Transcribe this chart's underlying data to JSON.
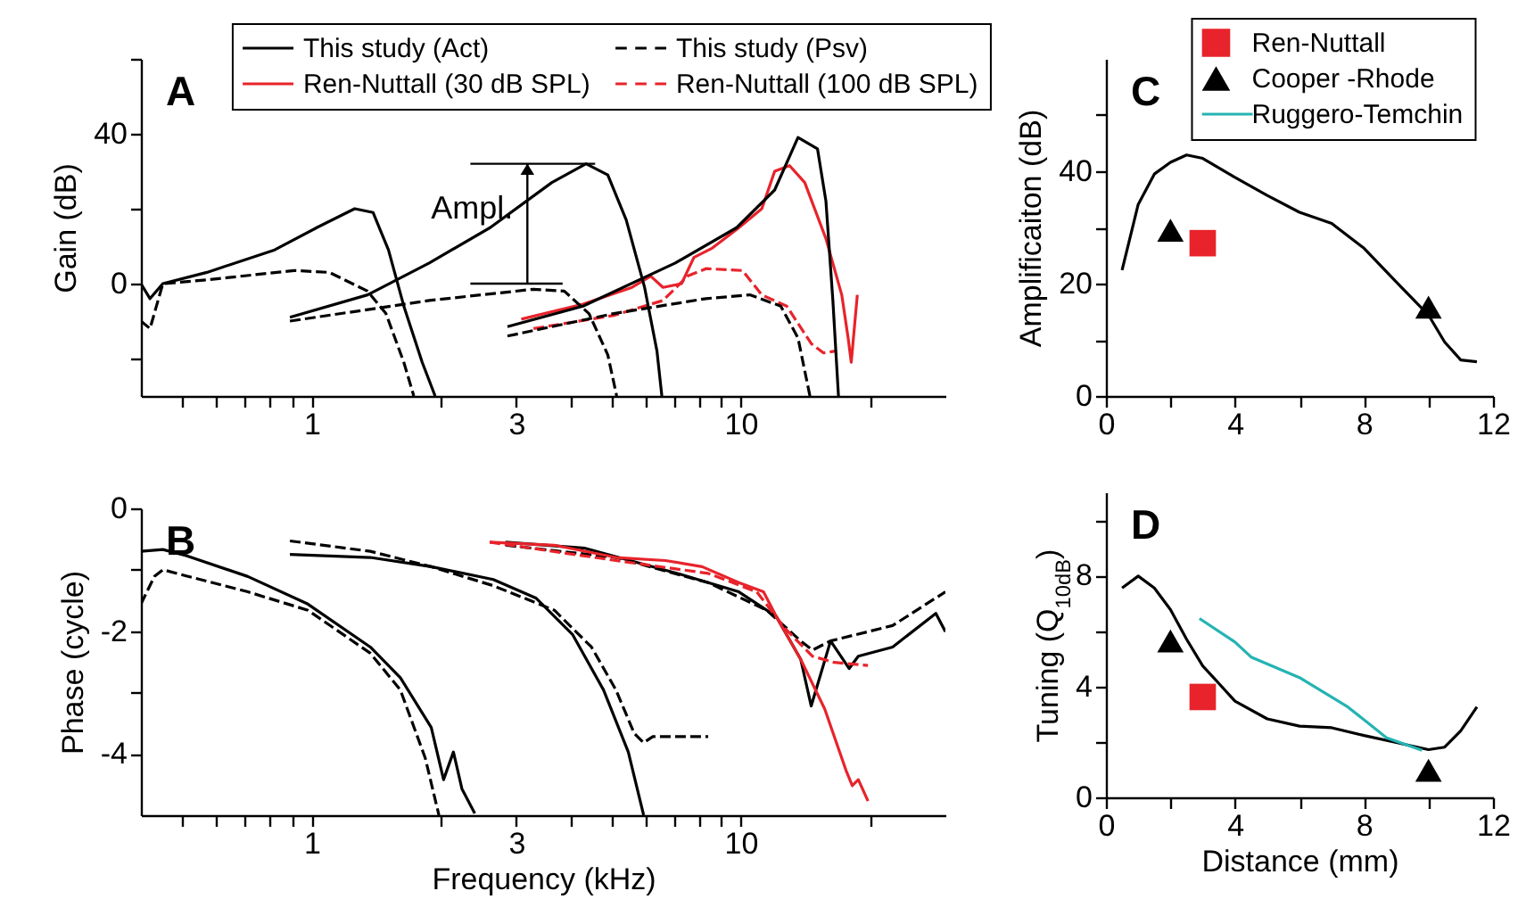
{
  "chart_data": [
    {
      "type": "line",
      "title": "A",
      "ylabel": "Gain (dB)",
      "log": "x",
      "xlim": [
        0.4,
        30
      ],
      "xticks": [
        {
          "value": 0.5,
          "label": null
        },
        {
          "value": 0.6,
          "label": null
        },
        {
          "value": 0.7,
          "label": null
        },
        {
          "value": 0.8,
          "label": null
        },
        {
          "value": 0.9,
          "label": null
        },
        1,
        {
          "value": 2,
          "label": null
        },
        3,
        {
          "value": 4,
          "label": null
        },
        {
          "value": 5,
          "label": null
        },
        {
          "value": 6,
          "label": null
        },
        {
          "value": 7,
          "label": null
        },
        {
          "value": 8,
          "label": null
        },
        {
          "value": 9,
          "label": null
        },
        10,
        {
          "value": 20,
          "label": null
        }
      ],
      "ylim": [
        -30,
        60
      ],
      "yticks": [
        {
          "value": -20,
          "label": null
        },
        0,
        {
          "value": 20,
          "label": null
        },
        40,
        {
          "value": 60,
          "label": null
        }
      ],
      "legend": "top",
      "annotations": [
        {
          "text": "Ampl.",
          "x": 4.36,
          "y": 32
        }
      ],
      "series": [
        {
          "name": "This study (Act)",
          "color": "#000000",
          "line_style": "solid",
          "x": [
            0.4,
            0.42,
            0.45,
            0.57,
            0.82,
            1.03,
            1.26,
            1.39,
            1.51,
            1.64,
            1.81,
            1.94
          ],
          "values": [
            0,
            -4,
            0,
            3,
            9,
            15,
            20,
            19,
            9,
            -6,
            -21,
            -30
          ]
        },
        {
          "name": "Ren-Nuttall (30 dB SPL)",
          "color": "#e8232b",
          "line_style": "solid",
          "x": [
            3.08,
            4.29,
            5.58,
            6.17,
            6.59,
            7.28,
            7.78,
            8.59,
            9.8,
            11.2,
            12,
            13,
            14.1,
            15.8,
            17.2,
            17.8,
            18.1,
            18.7
          ],
          "values": [
            -9.5,
            -5.5,
            -1,
            2,
            -1,
            0,
            7,
            9.5,
            14.5,
            20,
            30,
            31.5,
            27,
            12,
            -3,
            -14.5,
            -21,
            -3
          ]
        },
        {
          "name": "This study (Psv)",
          "color": "#000000",
          "line_style": "dashed",
          "x": [
            0.4,
            0.42,
            0.45,
            0.57,
            0.91,
            1.1,
            1.35,
            1.49,
            1.64,
            1.73
          ],
          "values": [
            -10,
            -12,
            0,
            1,
            3.5,
            3,
            -2,
            -8,
            -21,
            -30
          ]
        },
        {
          "name": "Ren-Nuttall (100 dB SPL)",
          "color": "#e8232b",
          "line_style": "dashed",
          "x": [
            3.29,
            5.06,
            6.59,
            7.52,
            8.3,
            10.1,
            11.2,
            12.8,
            14.6,
            15.6,
            16.6
          ],
          "values": [
            -12,
            -8.5,
            -4.5,
            2,
            4,
            3.5,
            -3,
            -6,
            -16,
            -18.5,
            -18
          ]
        },
        {
          "color": "#000000",
          "line_style": "solid",
          "x": [
            0.89,
            1.35,
            1.88,
            2.61,
            3.63,
            4.36,
            4.9,
            5.41,
            5.97,
            6.38,
            6.55
          ],
          "values": [
            -9,
            -3,
            5.5,
            15,
            27,
            32,
            29,
            17,
            -1,
            -18,
            -30
          ]
        },
        {
          "color": "#000000",
          "line_style": "solid",
          "x": [
            2.86,
            4.29,
            7.04,
            9.8,
            12,
            13.6,
            15.1,
            15.8,
            16.4,
            16.9
          ],
          "values": [
            -11.5,
            -6,
            5.5,
            15,
            25,
            39,
            36,
            22,
            -4.5,
            -30
          ]
        },
        {
          "color": "#000000",
          "line_style": "dashed",
          "x": [
            0.89,
            1.88,
            3.29,
            3.88,
            4.43,
            4.9,
            5.14
          ],
          "values": [
            -10,
            -4.5,
            -1.5,
            -2,
            -8,
            -19,
            -30
          ]
        },
        {
          "color": "#000000",
          "line_style": "dashed",
          "x": [
            2.86,
            5.06,
            8.3,
            10.5,
            12.4,
            13.6,
            14.5
          ],
          "values": [
            -14,
            -8,
            -4,
            -3,
            -6,
            -14.5,
            -30
          ]
        }
      ]
    },
    {
      "type": "line",
      "title": "B",
      "xlabel": "Frequency (kHz)",
      "ylabel": "Phase (cycle)",
      "log": "x",
      "xlim": [
        0.4,
        30
      ],
      "xticks": [
        {
          "value": 0.5,
          "label": null
        },
        {
          "value": 0.6,
          "label": null
        },
        {
          "value": 0.7,
          "label": null
        },
        {
          "value": 0.8,
          "label": null
        },
        {
          "value": 0.9,
          "label": null
        },
        1,
        {
          "value": 2,
          "label": null
        },
        3,
        {
          "value": 4,
          "label": null
        },
        {
          "value": 5,
          "label": null
        },
        {
          "value": 6,
          "label": null
        },
        {
          "value": 7,
          "label": null
        },
        {
          "value": 8,
          "label": null
        },
        {
          "value": 9,
          "label": null
        },
        10,
        {
          "value": 20,
          "label": null
        }
      ],
      "ylim": [
        -5,
        0
      ],
      "yticks": [
        0,
        {
          "value": -1,
          "label": null
        },
        -2,
        {
          "value": -3,
          "label": null
        },
        -4
      ],
      "series": [
        {
          "color": "#000000",
          "line_style": "solid",
          "x": [
            0.4,
            0.45,
            0.51,
            0.71,
            0.98,
            1.37,
            1.61,
            1.9,
            2.03,
            2.14,
            2.24,
            2.4
          ],
          "values": [
            -0.7,
            -0.67,
            -0.77,
            -1.11,
            -1.56,
            -2.26,
            -2.76,
            -3.57,
            -4.42,
            -3.97,
            -4.57,
            -4.97
          ]
        },
        {
          "color": "#000000",
          "line_style": "dashed",
          "x": [
            0.4,
            0.43,
            0.45,
            0.51,
            0.71,
            0.98,
            1.37,
            1.61,
            1.84,
            1.98
          ],
          "values": [
            -1.56,
            -1.11,
            -1.0,
            -1.1,
            -1.36,
            -1.66,
            -2.36,
            -2.96,
            -4.07,
            -5
          ]
        },
        {
          "color": "#000000",
          "line_style": "solid",
          "x": [
            0.89,
            1.37,
            1.9,
            2.65,
            3.33,
            4.06,
            4.79,
            5.47,
            5.94
          ],
          "values": [
            -0.75,
            -0.8,
            -0.95,
            -1.16,
            -1.46,
            -2.06,
            -2.96,
            -3.97,
            -5
          ]
        },
        {
          "color": "#000000",
          "line_style": "dashed",
          "x": [
            0.89,
            1.37,
            1.9,
            2.65,
            3.68,
            4.49,
            5.12,
            5.65,
            5.94,
            6.24,
            8.4
          ],
          "values": [
            -0.53,
            -0.7,
            -0.95,
            -1.26,
            -1.66,
            -2.26,
            -2.96,
            -3.67,
            -3.82,
            -3.72,
            -3.72
          ]
        },
        {
          "color": "#000000",
          "line_style": "solid",
          "x": [
            2.83,
            4.34,
            7.12,
            9.9,
            12.1,
            13.8,
            14.6,
            16.2,
            17.9,
            18.8,
            22.6,
            28.5,
            30
          ],
          "values": [
            -0.55,
            -0.65,
            -1.06,
            -1.36,
            -1.76,
            -2.46,
            -3.22,
            -2.16,
            -2.61,
            -2.41,
            -2.26,
            -1.71,
            -2.01
          ]
        },
        {
          "color": "#000000",
          "line_style": "dashed",
          "x": [
            2.83,
            5.12,
            8.4,
            11.5,
            13.8,
            14.7,
            16.2,
            22.6,
            30
          ],
          "values": [
            -0.6,
            -0.8,
            -1.21,
            -1.66,
            -2.16,
            -2.31,
            -2.16,
            -1.91,
            -1.36
          ]
        },
        {
          "color": "#e8232b",
          "line_style": "solid",
          "x": [
            2.6,
            3.68,
            5.12,
            6.67,
            8.13,
            9.9,
            11.3,
            12.1,
            13.8,
            15.7,
            17.6,
            18.2,
            18.8,
            19.8
          ],
          "values": [
            -0.55,
            -0.6,
            -0.8,
            -0.85,
            -0.95,
            -1.21,
            -1.36,
            -1.76,
            -2.46,
            -3.27,
            -4.27,
            -4.52,
            -4.42,
            -4.77
          ]
        },
        {
          "color": "#e8232b",
          "line_style": "dashed",
          "x": [
            2.6,
            5.12,
            8.4,
            10.9,
            12.7,
            14.7,
            16.5,
            19.8
          ],
          "values": [
            -0.55,
            -0.85,
            -1.06,
            -1.36,
            -1.96,
            -2.41,
            -2.51,
            -2.56
          ]
        }
      ]
    },
    {
      "type": "line",
      "title": "C",
      "ylabel": "Amplificaiton (dB)",
      "xlim": [
        0,
        12
      ],
      "xticks": [
        0,
        {
          "value": 2,
          "label": null
        },
        4,
        {
          "value": 6,
          "label": null
        },
        8,
        {
          "value": 10,
          "label": null
        },
        12
      ],
      "ylim": [
        0,
        60
      ],
      "yticks": [
        0,
        {
          "value": 10,
          "label": null
        },
        20,
        {
          "value": 30,
          "label": null
        },
        40,
        {
          "value": 50,
          "label": null
        }
      ],
      "legend": "top right",
      "series": [
        {
          "color": "#000000",
          "x": [
            0.5,
            1,
            1.5,
            2,
            2.5,
            3,
            4,
            5,
            6,
            7,
            8,
            9,
            10,
            10.5,
            11,
            11.5
          ],
          "values": [
            22.4,
            34.1,
            39.5,
            41.6,
            42.9,
            42.3,
            38.9,
            35.7,
            32.7,
            30.7,
            26.3,
            20.3,
            14.4,
            9.6,
            6.4,
            6.1
          ]
        },
        {
          "name": "Ren-Nuttall",
          "type": "scatter",
          "marker": "square",
          "color": "#e8232b",
          "x": [
            3
          ],
          "values": [
            27.2
          ]
        },
        {
          "name": "Cooper -Rhode",
          "type": "scatter",
          "marker": "triangle",
          "color": "#000000",
          "x": [
            2,
            10
          ],
          "values": [
            29.5,
            15.8
          ]
        },
        {
          "name": "Ruggero-Temchin",
          "color": "#25b3b3"
        }
      ]
    },
    {
      "type": "line",
      "title": "D",
      "xlabel": "Distance (mm)",
      "ylabel": "Tuning (Q$_{10dB}$)",
      "xlim": [
        0,
        12
      ],
      "xticks": [
        0,
        {
          "value": 2,
          "label": null
        },
        4,
        {
          "value": 6,
          "label": null
        },
        8,
        {
          "value": 10,
          "label": null
        },
        12
      ],
      "ylim": [
        0,
        11
      ],
      "yticks": [
        0,
        {
          "value": 2,
          "label": null
        },
        4,
        {
          "value": 6,
          "label": null
        },
        8,
        {
          "value": 10,
          "label": null
        }
      ],
      "series": [
        {
          "color": "#000000",
          "x": [
            0.5,
            1,
            1.5,
            2,
            2.5,
            3,
            3.5,
            4,
            5,
            6,
            7,
            8,
            9,
            10,
            10.5,
            11,
            11.5
          ],
          "values": [
            7.55,
            7.98,
            7.55,
            6.77,
            5.7,
            4.74,
            4.11,
            3.47,
            2.83,
            2.57,
            2.51,
            2.23,
            1.98,
            1.72,
            1.81,
            2.4,
            3.26
          ]
        },
        {
          "color": "#25b3b3",
          "x": [
            2.9,
            4,
            4.5,
            6,
            7.5,
            8.7,
            9.8
          ],
          "values": [
            6.45,
            5.6,
            5.06,
            4.32,
            3.26,
            2.15,
            1.7
          ]
        },
        {
          "type": "scatter",
          "marker": "square",
          "color": "#e8232b",
          "x": [
            3
          ],
          "values": [
            3.62
          ]
        },
        {
          "type": "scatter",
          "marker": "triangle",
          "color": "#000000",
          "x": [
            2,
            10
          ],
          "values": [
            5.64,
            0.98
          ]
        }
      ]
    }
  ]
}
